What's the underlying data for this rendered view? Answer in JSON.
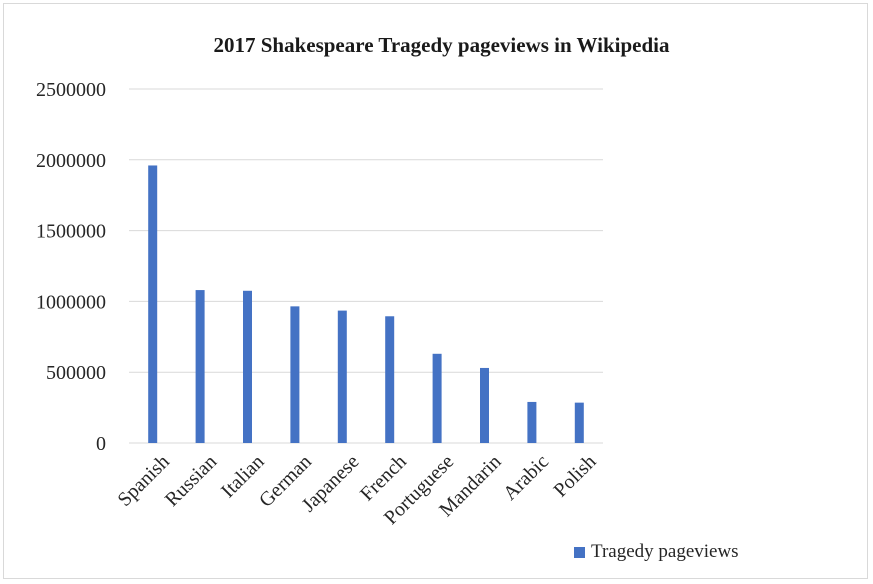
{
  "chart_data": {
    "type": "bar",
    "title": "2017 Shakespeare Tragedy pageviews in Wikipedia",
    "xlabel": "",
    "ylabel": "",
    "categories": [
      "Spanish",
      "Russian",
      "Italian",
      "German",
      "Japanese",
      "French",
      "Portuguese",
      "Mandarin",
      "Arabic",
      "Polish"
    ],
    "series": [
      {
        "name": "Tragedy pageviews",
        "values": [
          1960000,
          1080000,
          1075000,
          965000,
          935000,
          895000,
          630000,
          530000,
          290000,
          285000
        ]
      }
    ],
    "ylim": [
      0,
      2500000
    ],
    "yticks": [
      "0",
      "500000",
      "1000000",
      "1500000",
      "2000000",
      "2500000"
    ],
    "grid": true,
    "legend_position": "bottom-right",
    "colors": {
      "bar": "#4472c4",
      "grid": "#d9d9d9",
      "text": "#262626"
    }
  }
}
